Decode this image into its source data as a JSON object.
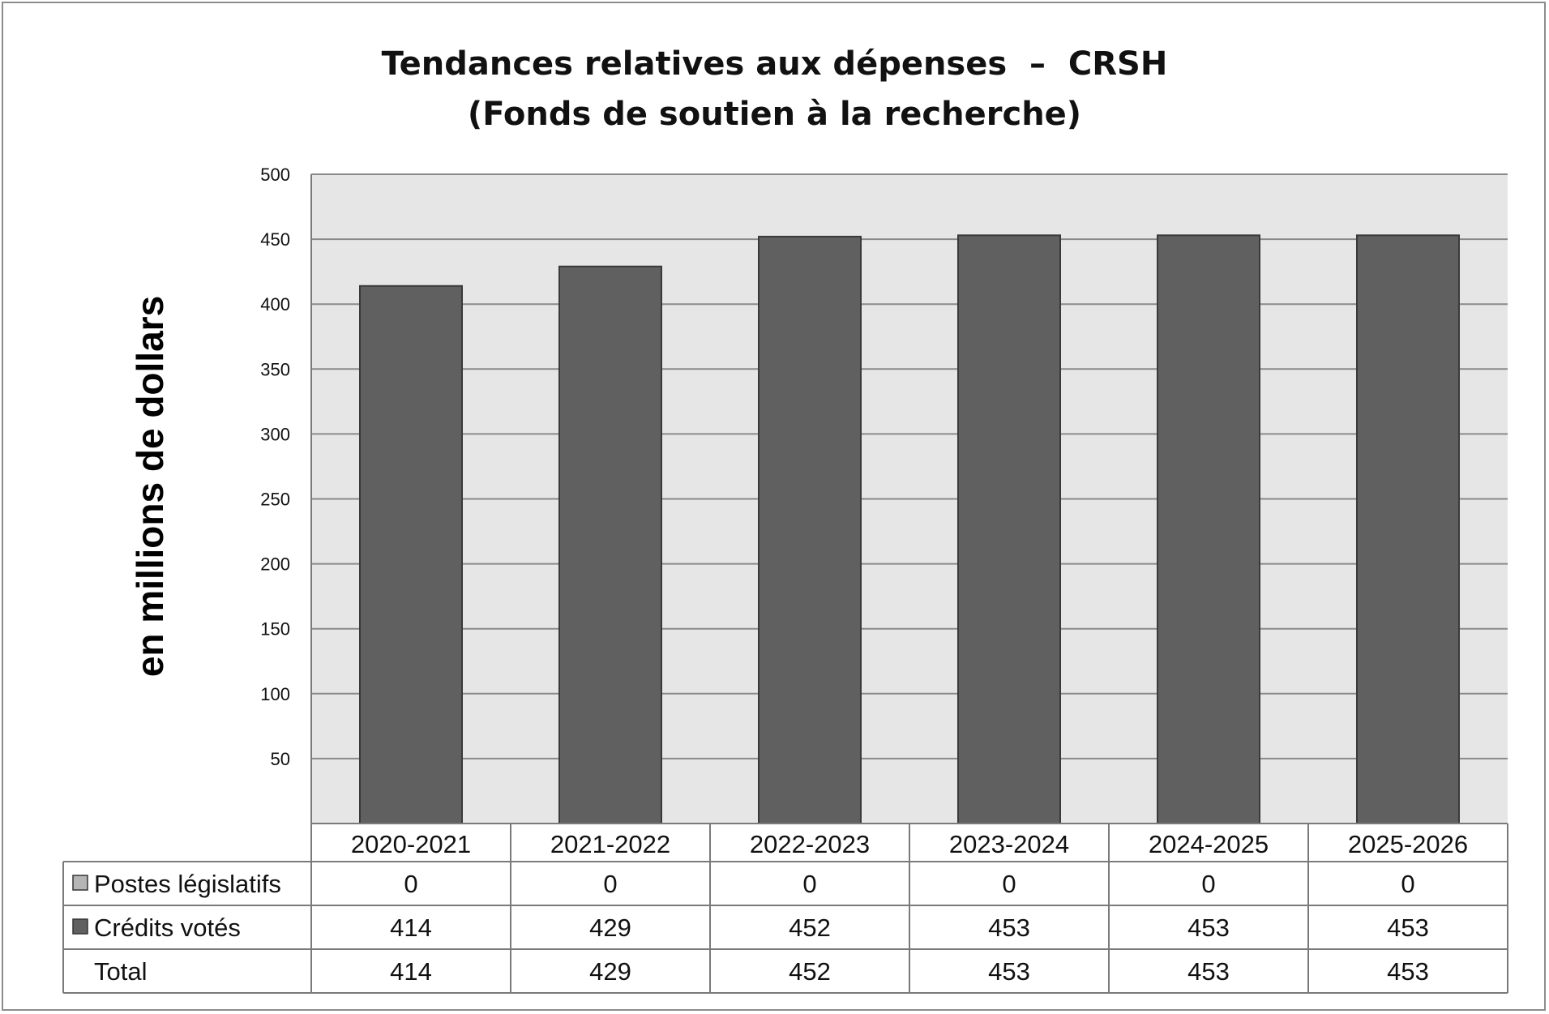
{
  "chart_data": {
    "type": "bar",
    "title_lines": [
      "Tendances relatives aux dépenses  –  CRSH",
      "(Fonds de soutien à la recherche)"
    ],
    "ylabel": "en millions de dollars",
    "ylim": [
      0,
      500
    ],
    "yticks": [
      50,
      100,
      150,
      200,
      250,
      300,
      350,
      400,
      450,
      500
    ],
    "categories": [
      "2020-2021",
      "2021-2022",
      "2022-2023",
      "2023-2024",
      "2024-2025",
      "2025-2026"
    ],
    "series": [
      {
        "name": "Postes législatifs",
        "values": [
          0,
          0,
          0,
          0,
          0,
          0
        ],
        "color": "#b5b5b5"
      },
      {
        "name": "Crédits votés",
        "values": [
          414,
          429,
          452,
          453,
          453,
          453
        ],
        "color": "#606060"
      }
    ],
    "total": {
      "name": "Total",
      "values": [
        414,
        429,
        452,
        453,
        453,
        453
      ]
    },
    "stacked": true,
    "grid": true,
    "legend": "data-table",
    "colors": {
      "plot_background": "#e6e6e6",
      "gridline": "#8a8a8a",
      "bar_outline": "#3a3a3a"
    }
  }
}
